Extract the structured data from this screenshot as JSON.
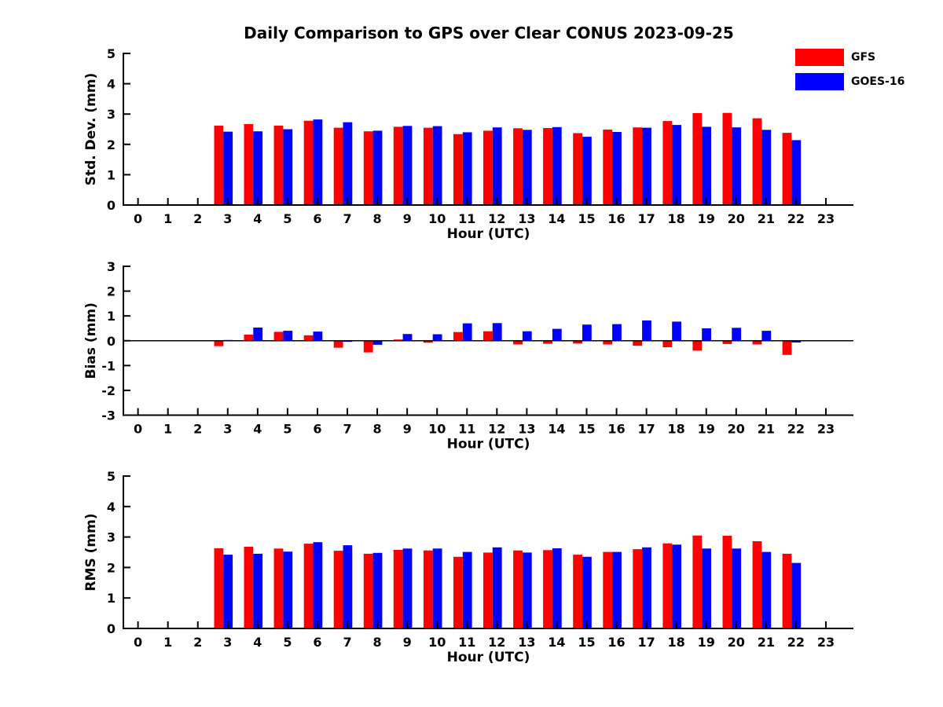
{
  "title": "Daily Comparison to GPS over Clear CONUS 2023-09-25",
  "legend": {
    "position": "top-right",
    "items": [
      {
        "label": "GFS",
        "color": "#ff0000"
      },
      {
        "label": "GOES-16",
        "color": "#0000ff"
      }
    ]
  },
  "chart_data": [
    {
      "type": "bar",
      "panel": "std-dev",
      "xlabel": "Hour (UTC)",
      "ylabel": "Std. Dev. (mm)",
      "ylim": [
        0,
        5
      ],
      "yticks": [
        0,
        1,
        2,
        3,
        4,
        5
      ],
      "grid": false,
      "categories": [
        0,
        1,
        2,
        3,
        4,
        5,
        6,
        7,
        8,
        9,
        10,
        11,
        12,
        13,
        14,
        15,
        16,
        17,
        18,
        19,
        20,
        21,
        22,
        23
      ],
      "series": [
        {
          "name": "GFS",
          "color": "#ff0000",
          "values": [
            null,
            null,
            null,
            2.62,
            2.67,
            2.62,
            2.78,
            2.55,
            2.43,
            2.58,
            2.55,
            2.34,
            2.45,
            2.53,
            2.54,
            2.37,
            2.49,
            2.56,
            2.77,
            3.03,
            3.04,
            2.86,
            2.38,
            null
          ]
        },
        {
          "name": "GOES-16",
          "color": "#0000ff",
          "values": [
            null,
            null,
            null,
            2.42,
            2.43,
            2.5,
            2.82,
            2.73,
            2.45,
            2.61,
            2.6,
            2.4,
            2.56,
            2.48,
            2.57,
            2.25,
            2.41,
            2.55,
            2.64,
            2.58,
            2.56,
            2.48,
            2.14,
            null
          ]
        }
      ]
    },
    {
      "type": "bar",
      "panel": "bias",
      "xlabel": "Hour (UTC)",
      "ylabel": "Bias (mm)",
      "ylim": [
        -3,
        3
      ],
      "yticks": [
        3,
        2,
        1,
        0,
        -1,
        -2,
        -3
      ],
      "zero_line": true,
      "grid": false,
      "categories": [
        0,
        1,
        2,
        3,
        4,
        5,
        6,
        7,
        8,
        9,
        10,
        11,
        12,
        13,
        14,
        15,
        16,
        17,
        18,
        19,
        20,
        21,
        22,
        23
      ],
      "series": [
        {
          "name": "GFS",
          "color": "#ff0000",
          "values": [
            null,
            null,
            null,
            -0.22,
            0.25,
            0.36,
            0.22,
            -0.28,
            -0.47,
            0.05,
            -0.08,
            0.35,
            0.38,
            -0.15,
            -0.12,
            -0.11,
            -0.15,
            -0.2,
            -0.26,
            -0.4,
            -0.13,
            -0.15,
            -0.57,
            null
          ]
        },
        {
          "name": "GOES-16",
          "color": "#0000ff",
          "values": [
            null,
            null,
            null,
            0.03,
            0.53,
            0.4,
            0.37,
            -0.04,
            -0.16,
            0.27,
            0.26,
            0.7,
            0.71,
            0.38,
            0.48,
            0.65,
            0.67,
            0.82,
            0.77,
            0.5,
            0.52,
            0.4,
            -0.07,
            null
          ]
        }
      ]
    },
    {
      "type": "bar",
      "panel": "rms",
      "xlabel": "Hour (UTC)",
      "ylabel": "RMS (mm)",
      "ylim": [
        0,
        5
      ],
      "yticks": [
        0,
        1,
        2,
        3,
        4,
        5
      ],
      "grid": false,
      "categories": [
        0,
        1,
        2,
        3,
        4,
        5,
        6,
        7,
        8,
        9,
        10,
        11,
        12,
        13,
        14,
        15,
        16,
        17,
        18,
        19,
        20,
        21,
        22,
        23
      ],
      "series": [
        {
          "name": "GFS",
          "color": "#ff0000",
          "values": [
            null,
            null,
            null,
            2.63,
            2.68,
            2.62,
            2.78,
            2.55,
            2.45,
            2.58,
            2.56,
            2.35,
            2.49,
            2.56,
            2.57,
            2.42,
            2.51,
            2.6,
            2.79,
            3.05,
            3.04,
            2.86,
            2.45,
            null
          ]
        },
        {
          "name": "GOES-16",
          "color": "#0000ff",
          "values": [
            null,
            null,
            null,
            2.42,
            2.45,
            2.52,
            2.83,
            2.73,
            2.48,
            2.62,
            2.62,
            2.51,
            2.66,
            2.49,
            2.63,
            2.35,
            2.51,
            2.66,
            2.75,
            2.62,
            2.62,
            2.51,
            2.15,
            null
          ]
        }
      ]
    }
  ]
}
